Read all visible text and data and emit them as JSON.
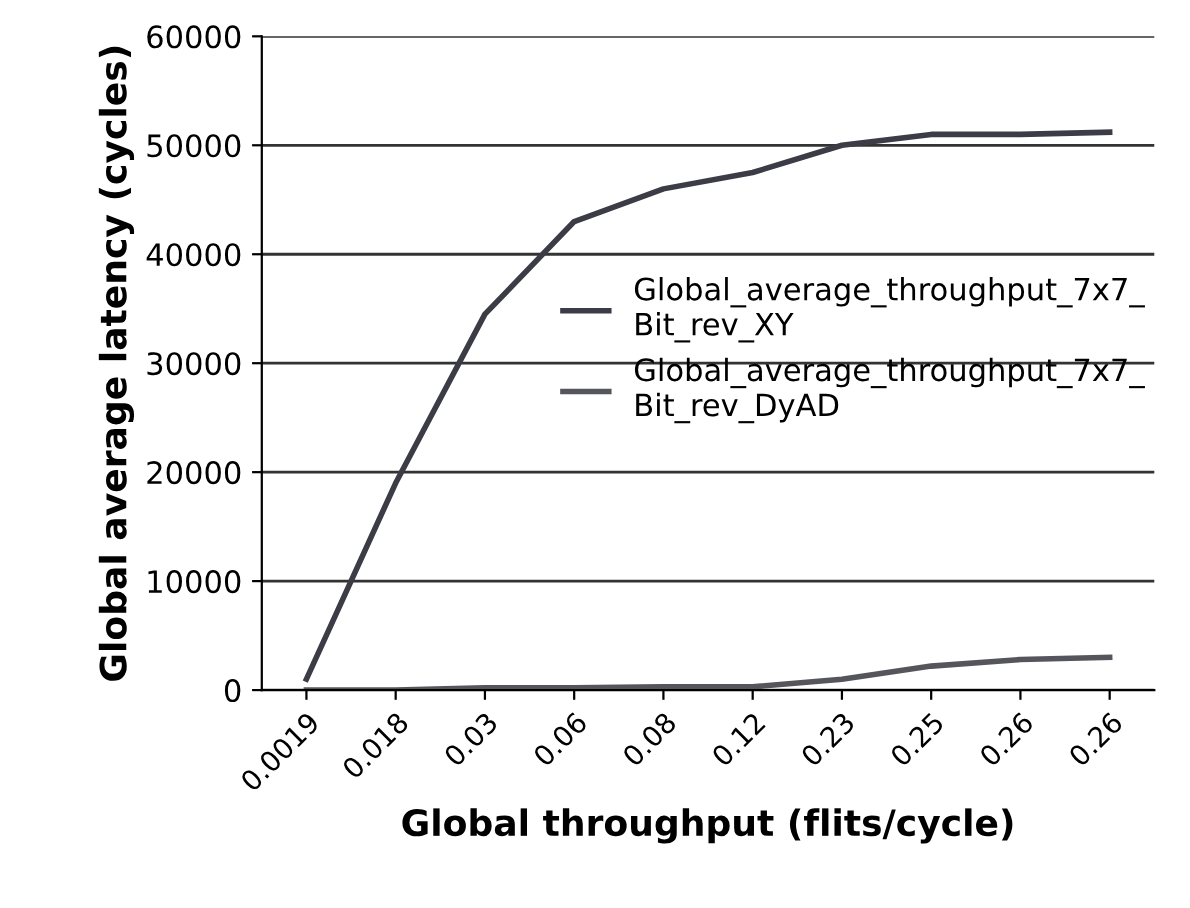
{
  "chart_data": {
    "type": "line",
    "xlabel": "Global throughput (flits/cycle)",
    "ylabel": "Global average latency (cycles)",
    "categories": [
      "0.0019",
      "0.018",
      "0.03",
      "0.06",
      "0.08",
      "0.12",
      "0.23",
      "0.25",
      "0.26",
      "0.26"
    ],
    "series": [
      {
        "name": "Global_average_throughput_7x7_\nBit_rev_XY",
        "color": "#3c3c46",
        "values": [
          1000,
          19000,
          34500,
          43000,
          46000,
          47500,
          50000,
          51000,
          51000,
          51200
        ]
      },
      {
        "name": "Global_average_throughput_7x7_\nBit_rev_DyAD",
        "color": "#55555c",
        "values": [
          0,
          0,
          200,
          200,
          300,
          300,
          1000,
          2200,
          2800,
          3000
        ]
      }
    ],
    "ylim": [
      0,
      60000
    ],
    "yticks": [
      0,
      10000,
      20000,
      30000,
      40000,
      50000,
      60000
    ],
    "grid": "y",
    "legend": "right",
    "marker": "none",
    "line_style": "solid"
  }
}
